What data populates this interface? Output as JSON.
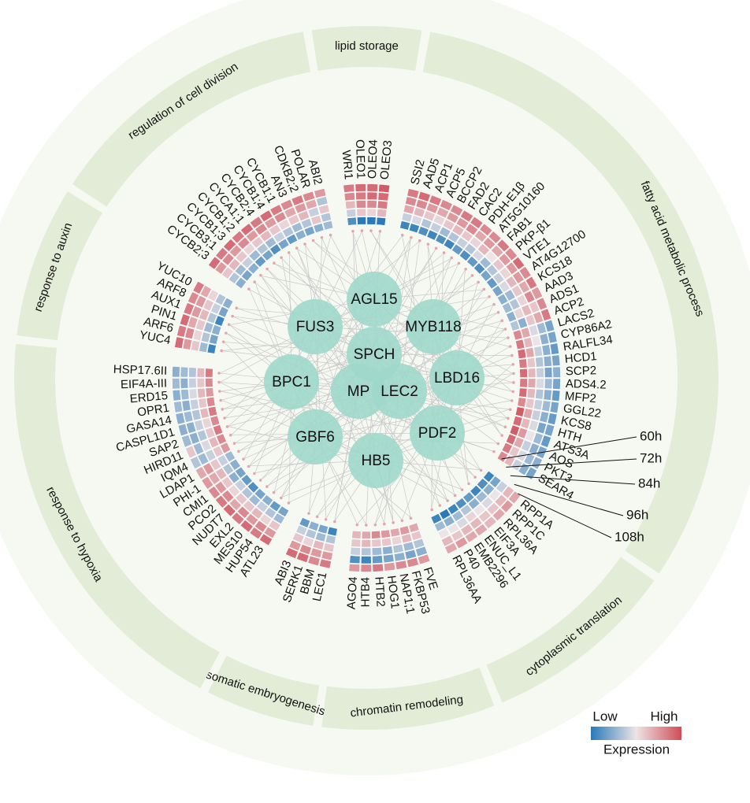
{
  "groups": [
    {
      "label": "lipid storage",
      "genes": [
        {
          "name": "WRI1",
          "expression": [
            -0.8,
            -0.2,
            0.3,
            0.6,
            0.7
          ]
        },
        {
          "name": "OLEO1",
          "expression": [
            -1,
            0.2,
            0.6,
            0.7,
            0.8
          ]
        },
        {
          "name": "OLEO4",
          "expression": [
            -1,
            0.1,
            0.6,
            0.8,
            0.8
          ]
        },
        {
          "name": "OLEO3",
          "expression": [
            -1,
            0.3,
            0.7,
            0.8,
            0.9
          ]
        }
      ]
    },
    {
      "label": "fatty acid metabolic process",
      "genes": [
        {
          "name": "SSI2",
          "expression": [
            -0.9,
            -0.2,
            0.4,
            0.6,
            0.7
          ]
        },
        {
          "name": "AAD5",
          "expression": [
            -0.9,
            -0.1,
            0.3,
            0.6,
            0.8
          ]
        },
        {
          "name": "ACP1",
          "expression": [
            -0.8,
            -0.3,
            0.2,
            0.5,
            0.7
          ]
        },
        {
          "name": "ACP5",
          "expression": [
            -0.9,
            -0.2,
            0.1,
            0.4,
            0.6
          ]
        },
        {
          "name": "BCCP2",
          "expression": [
            -0.8,
            -0.4,
            0.2,
            0.5,
            0.6
          ]
        },
        {
          "name": "FAD2",
          "expression": [
            -0.9,
            -0.3,
            0.3,
            0.5,
            0.7
          ]
        },
        {
          "name": "CAC2",
          "expression": [
            -0.7,
            -0.2,
            0.2,
            0.6,
            0.7
          ]
        },
        {
          "name": "PDH-E1β",
          "expression": [
            -0.8,
            -0.3,
            0.1,
            0.4,
            0.6
          ]
        },
        {
          "name": "AT5G10160",
          "expression": [
            -0.7,
            -0.1,
            0.3,
            0.5,
            0.6
          ]
        },
        {
          "name": "FAB1",
          "expression": [
            -0.8,
            -0.4,
            0,
            0.4,
            0.7
          ]
        },
        {
          "name": "PKP-β1",
          "expression": [
            -0.6,
            -0.3,
            0.2,
            0.5,
            0.6
          ]
        },
        {
          "name": "VTE1",
          "expression": [
            -0.7,
            -0.2,
            0.1,
            0.5,
            0.8
          ]
        },
        {
          "name": "AT4G12700",
          "expression": [
            -0.6,
            -0.1,
            0.3,
            0.5,
            0.6
          ]
        },
        {
          "name": "KCS18",
          "expression": [
            -0.5,
            -0.4,
            0.2,
            0.4,
            0.7
          ]
        },
        {
          "name": "AAD3",
          "expression": [
            -0.4,
            -0.3,
            0.1,
            0.6,
            0.5
          ]
        },
        {
          "name": "ADS1",
          "expression": [
            -0.5,
            0.1,
            0.3,
            0.2,
            0.6
          ]
        },
        {
          "name": "ACP2",
          "expression": [
            -0.3,
            -0.5,
            0.2,
            0.4,
            0.7
          ]
        },
        {
          "name": "LACS2",
          "expression": [
            0.6,
            0.4,
            -0.1,
            -0.4,
            -0.6
          ]
        },
        {
          "name": "CYP86A2",
          "expression": [
            0.7,
            0.3,
            0,
            -0.5,
            -0.6
          ]
        },
        {
          "name": "RALFL34",
          "expression": [
            0.8,
            0.4,
            -0.2,
            -0.5,
            -0.7
          ]
        },
        {
          "name": "HCD1",
          "expression": [
            0.7,
            0.2,
            -0.3,
            -0.5,
            -0.6
          ]
        },
        {
          "name": "SCP2",
          "expression": [
            0.8,
            0.3,
            -0.2,
            -0.6,
            -0.5
          ]
        },
        {
          "name": "ADS4.2",
          "expression": [
            0.7,
            0.4,
            -0.1,
            -0.4,
            -0.6
          ]
        },
        {
          "name": "MFP2",
          "expression": [
            0.8,
            0.3,
            -0.3,
            -0.5,
            -0.7
          ]
        },
        {
          "name": "GGL22",
          "expression": [
            0.6,
            0.2,
            -0.2,
            -0.4,
            -0.6
          ]
        },
        {
          "name": "KCS8",
          "expression": [
            0.9,
            0.4,
            -0.2,
            -0.5,
            -0.7
          ]
        },
        {
          "name": "HTH",
          "expression": [
            0.8,
            0.3,
            -0.1,
            -0.6,
            -0.6
          ]
        },
        {
          "name": "ATS3A",
          "expression": [
            0.9,
            0.5,
            0,
            -0.4,
            -0.7
          ]
        },
        {
          "name": "AOS",
          "expression": [
            0.8,
            0.4,
            -0.2,
            -0.5,
            -0.6
          ]
        },
        {
          "name": "PKT3",
          "expression": [
            0.7,
            0.2,
            -0.1,
            -0.4,
            -0.5
          ]
        },
        {
          "name": "SEAR4",
          "expression": [
            0.6,
            0.3,
            -0.2,
            -0.5,
            -0.6
          ]
        }
      ]
    },
    {
      "label": "cytoplasmic translation",
      "genes": [
        {
          "name": "RPP1A",
          "expression": [
            -0.9,
            -0.6,
            -0.2,
            0.3,
            0.4
          ]
        },
        {
          "name": "RPP1C",
          "expression": [
            -0.8,
            -0.5,
            0,
            0.3,
            0.5
          ]
        },
        {
          "name": "RPL36A",
          "expression": [
            -0.9,
            -0.4,
            -0.1,
            0.2,
            0.4
          ]
        },
        {
          "name": "EIF3A",
          "expression": [
            -0.7,
            -0.5,
            0,
            0.2,
            0.3
          ]
        },
        {
          "name": "ENUC_L1",
          "expression": [
            -0.8,
            -0.3,
            0.1,
            0.3,
            0.4
          ]
        },
        {
          "name": "EMB2296",
          "expression": [
            -0.9,
            -0.4,
            -0.1,
            0.3,
            0.4
          ]
        },
        {
          "name": "P40",
          "expression": [
            -1,
            -0.5,
            0,
            0.2,
            0.5
          ]
        },
        {
          "name": "RPL36AA",
          "expression": [
            -0.9,
            -0.4,
            0,
            0.3,
            0.4
          ]
        }
      ]
    },
    {
      "label": "chromatin remodeling",
      "genes": [
        {
          "name": "FVE",
          "expression": [
            0.4,
            0.2,
            -0.3,
            -0.5,
            0.5
          ]
        },
        {
          "name": "FKBP53",
          "expression": [
            0.5,
            0.3,
            -0.4,
            -0.6,
            0.6
          ]
        },
        {
          "name": "NAP1;1",
          "expression": [
            0.4,
            0.1,
            -0.3,
            -0.5,
            0.6
          ]
        },
        {
          "name": "HOG1",
          "expression": [
            0.5,
            0.2,
            -0.5,
            -0.6,
            0.5
          ]
        },
        {
          "name": "HTB2",
          "expression": [
            0.6,
            0.2,
            -0.4,
            -0.7,
            0.7
          ]
        },
        {
          "name": "HTB4",
          "expression": [
            0.4,
            0.3,
            -0.3,
            -0.9,
            0.6
          ]
        },
        {
          "name": "AGO4",
          "expression": [
            0.3,
            0.2,
            -0.2,
            -0.8,
            0.5
          ]
        }
      ]
    },
    {
      "label": "somatic embryogenesis",
      "genes": [
        {
          "name": "LEC1",
          "expression": [
            -0.9,
            -0.3,
            0.2,
            0.5,
            0.7
          ]
        },
        {
          "name": "BBM",
          "expression": [
            -0.6,
            -0.4,
            0.3,
            0.5,
            0.6
          ]
        },
        {
          "name": "SERK1",
          "expression": [
            -0.5,
            -0.3,
            0.1,
            0.6,
            0.8
          ]
        },
        {
          "name": "ABI3",
          "expression": [
            -0.7,
            -0.2,
            0.2,
            0.5,
            0.8
          ]
        }
      ]
    },
    {
      "label": "response to hypoxia",
      "genes": [
        {
          "name": "ATL23",
          "expression": [
            -0.6,
            -0.4,
            0.2,
            0.5,
            0.8
          ]
        },
        {
          "name": "HUP54",
          "expression": [
            -0.7,
            -0.3,
            0.1,
            0.6,
            0.7
          ]
        },
        {
          "name": "MES10",
          "expression": [
            -0.5,
            -0.2,
            0.3,
            0.5,
            0.8
          ]
        },
        {
          "name": "EXL2",
          "expression": [
            -0.6,
            -0.4,
            0.2,
            0.6,
            0.7
          ]
        },
        {
          "name": "NUDT7",
          "expression": [
            -0.8,
            -0.3,
            0.2,
            0.4,
            0.8
          ]
        },
        {
          "name": "PCO2",
          "expression": [
            -0.7,
            -0.2,
            0.1,
            0.6,
            0.7
          ]
        },
        {
          "name": "CMI1",
          "expression": [
            -0.6,
            -0.5,
            0.2,
            0.5,
            0.6
          ]
        },
        {
          "name": "PHI-1",
          "expression": [
            -0.5,
            -0.3,
            0.3,
            0.4,
            0.5
          ]
        },
        {
          "name": "LDAP1",
          "expression": [
            -0.4,
            -0.2,
            0.2,
            0.5,
            0.4
          ]
        },
        {
          "name": "IQM4",
          "expression": [
            0.5,
            0.2,
            -0.2,
            -0.4,
            -0.3
          ]
        },
        {
          "name": "HIRD11",
          "expression": [
            0.6,
            0.3,
            -0.1,
            -0.4,
            0.2
          ]
        },
        {
          "name": "SAP2",
          "expression": [
            0.7,
            0.2,
            -0.3,
            -0.5,
            -0.4
          ]
        },
        {
          "name": "CASPL1D1",
          "expression": [
            0.6,
            0.1,
            -0.2,
            -0.5,
            -0.5
          ]
        },
        {
          "name": "GASA14",
          "expression": [
            0.7,
            0.3,
            -0.3,
            -0.4,
            -0.5
          ]
        },
        {
          "name": "OPR1",
          "expression": [
            0.6,
            0.2,
            -0.2,
            -0.5,
            -0.4
          ]
        },
        {
          "name": "ERD15",
          "expression": [
            0.5,
            0.3,
            -0.1,
            -0.4,
            -0.5
          ]
        },
        {
          "name": "EIF4A-III",
          "expression": [
            0.6,
            0.2,
            -0.2,
            -0.5,
            -0.4
          ]
        },
        {
          "name": "HSP17.6II",
          "expression": [
            0.7,
            0.3,
            -0.3,
            -0.4,
            -0.5
          ]
        }
      ]
    },
    {
      "label": "response to auxin",
      "genes": [
        {
          "name": "YUC4",
          "expression": [
            -0.9,
            -0.4,
            0.2,
            0.5,
            0.8
          ]
        },
        {
          "name": "ARF6",
          "expression": [
            -0.6,
            -0.3,
            0.1,
            0.6,
            0.7
          ]
        },
        {
          "name": "PIN1",
          "expression": [
            -0.5,
            -0.4,
            0.2,
            0.4,
            0.8
          ]
        },
        {
          "name": "AUX1",
          "expression": [
            -0.9,
            -0.3,
            0.3,
            0.5,
            0.7
          ]
        },
        {
          "name": "ARF8",
          "expression": [
            -0.6,
            -0.2,
            0.2,
            0.5,
            0.6
          ]
        },
        {
          "name": "YUC10",
          "expression": [
            -0.5,
            -0.3,
            0.1,
            0.4,
            0.7
          ]
        }
      ]
    },
    {
      "label": "regulation of cell division",
      "genes": [
        {
          "name": "CYCB2;3",
          "expression": [
            -0.5,
            -0.3,
            0.2,
            0.5,
            0.8
          ]
        },
        {
          "name": "CYCB3;1",
          "expression": [
            -0.6,
            -0.4,
            0.3,
            0.6,
            0.7
          ]
        },
        {
          "name": "CYCB1;3",
          "expression": [
            -0.5,
            -0.2,
            0.2,
            0.5,
            0.8
          ]
        },
        {
          "name": "CYCB1;2",
          "expression": [
            -0.7,
            -0.4,
            0.1,
            0.6,
            0.7
          ]
        },
        {
          "name": "CYCA1;1",
          "expression": [
            -0.6,
            -0.3,
            0.2,
            0.5,
            0.8
          ]
        },
        {
          "name": "CYCB2;4",
          "expression": [
            -0.8,
            -0.4,
            0.3,
            0.6,
            0.7
          ]
        },
        {
          "name": "CYCB1;4",
          "expression": [
            -0.6,
            -0.2,
            0.2,
            0.5,
            0.8
          ]
        },
        {
          "name": "CYCB1;1",
          "expression": [
            -0.7,
            -0.3,
            0.1,
            0.6,
            0.7
          ]
        },
        {
          "name": "AN3",
          "expression": [
            -0.5,
            -0.4,
            0.2,
            0.4,
            0.6
          ]
        },
        {
          "name": "CDKB2;2",
          "expression": [
            -0.6,
            -0.3,
            0.3,
            0.5,
            0.7
          ]
        },
        {
          "name": "POLAR",
          "expression": [
            -0.5,
            0.2,
            -0.2,
            0.4,
            0.6
          ]
        },
        {
          "name": "ABI2",
          "expression": [
            -0.4,
            -0.3,
            0.2,
            -0.3,
            0.5
          ]
        }
      ]
    }
  ],
  "timepoints": [
    "60h",
    "72h",
    "84h",
    "96h",
    "108h"
  ],
  "regulators": [
    "AGL15",
    "FUS3",
    "MYB118",
    "SPCH",
    "BPC1",
    "MP",
    "LEC2",
    "LBD16",
    "GBF6",
    "PDF2",
    "HB5"
  ],
  "legend": {
    "low": "Low",
    "high": "High",
    "title": "Expression"
  }
}
